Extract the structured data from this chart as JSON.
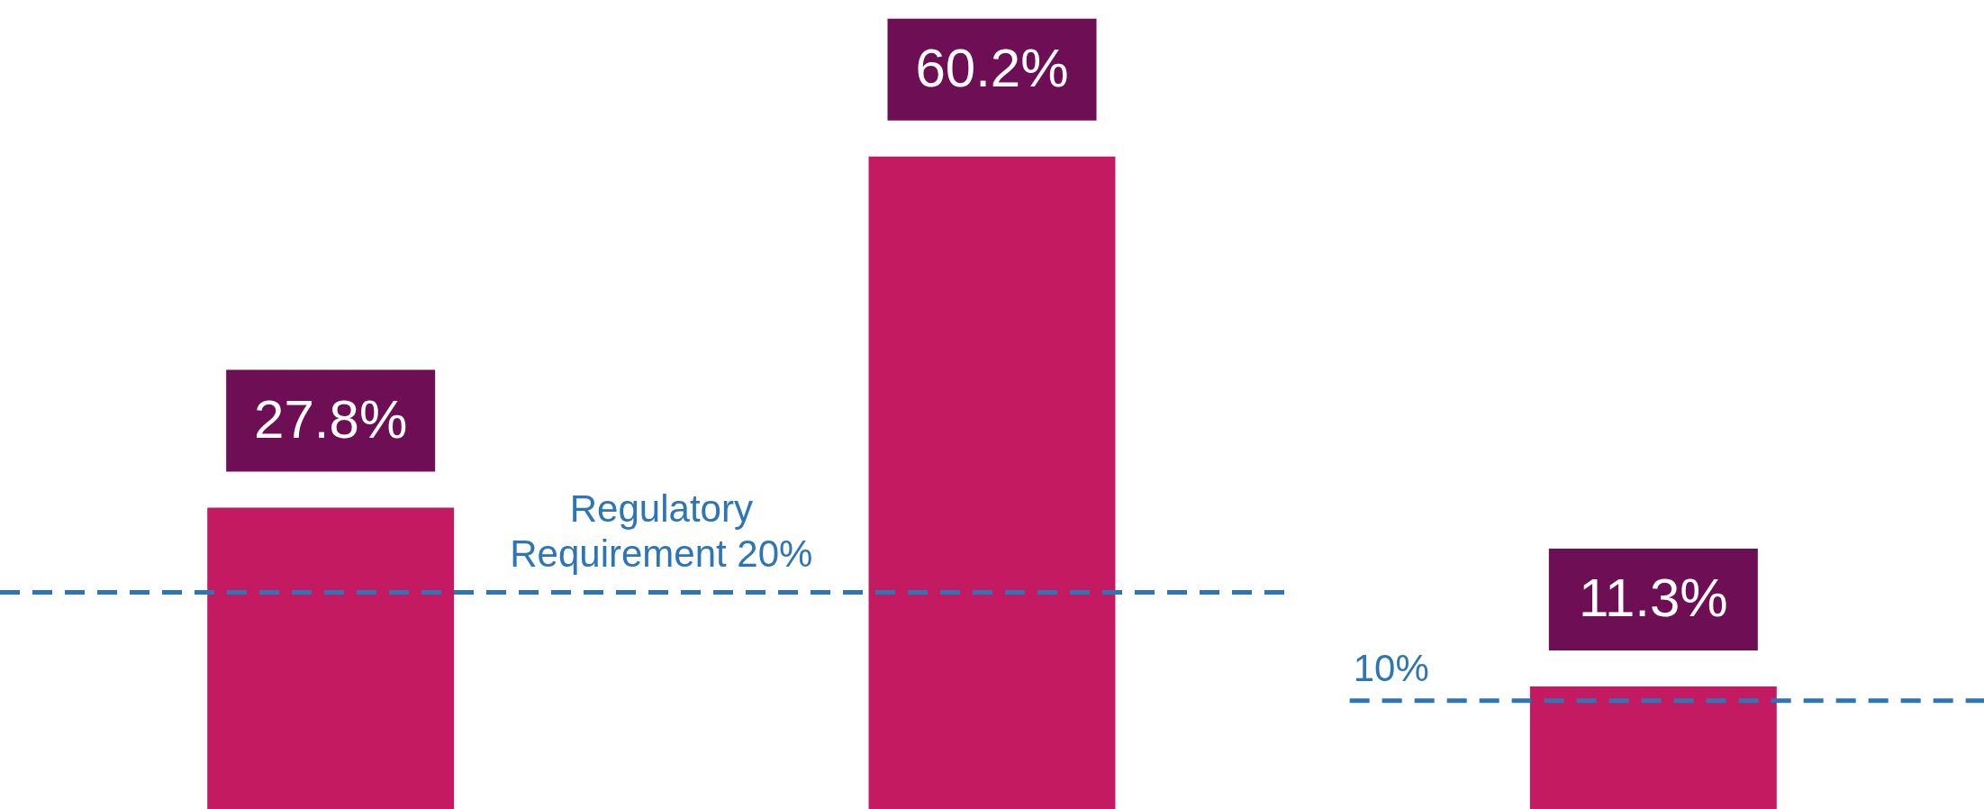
{
  "chart_data": {
    "type": "bar",
    "categories": [
      null,
      null,
      null
    ],
    "values": [
      27.8,
      60.2,
      11.3
    ],
    "value_labels": [
      "27.8%",
      "60.2%",
      "11.3%"
    ],
    "color": "#c41a62",
    "grid": false,
    "legend": false,
    "tick_labels": false,
    "ref_lines": [
      {
        "axis": "y",
        "value": 20,
        "label": "Regulatory Requirement 20%",
        "color": "#2e75b6",
        "line_style": "dashed"
      },
      {
        "axis": "y",
        "value": 10,
        "label": "10%",
        "color": "#2e75b6",
        "line_style": "dashed"
      }
    ]
  }
}
